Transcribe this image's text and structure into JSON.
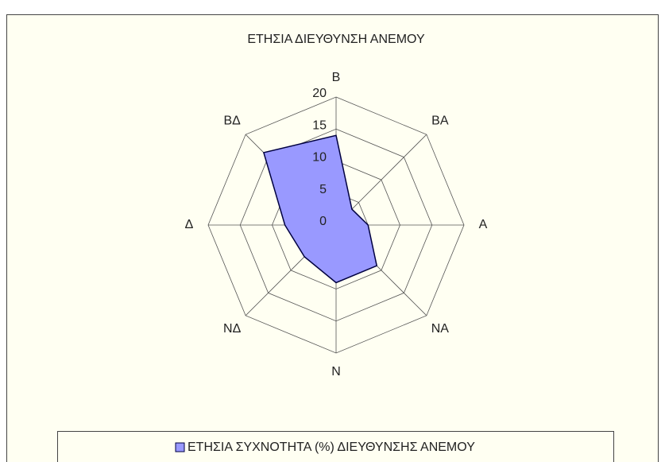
{
  "chart_data": {
    "type": "radar",
    "title": "ΕΤΗΣΙΑ ΔΙΕΥΘΥΝΣΗ ΑΝΕΜΟΥ",
    "categories": [
      "Β",
      "ΒΑ",
      "Α",
      "ΝΑ",
      "Ν",
      "ΝΔ",
      "Δ",
      "ΒΔ"
    ],
    "series": [
      {
        "name": "ΕΤΗΣΙΑ ΣΥΧΝΟΤΗΤΑ (%) ΔΙΕΥΘΥΝΣΗΣ ΑΝΕΜΟΥ",
        "color": "#9999ff",
        "values": [
          14,
          3.5,
          5,
          9,
          9,
          7,
          8,
          16
        ]
      }
    ],
    "rlim": [
      0,
      20
    ],
    "rticks": [
      0,
      5,
      10,
      15,
      20
    ],
    "grid": true,
    "legend": "bottom"
  }
}
